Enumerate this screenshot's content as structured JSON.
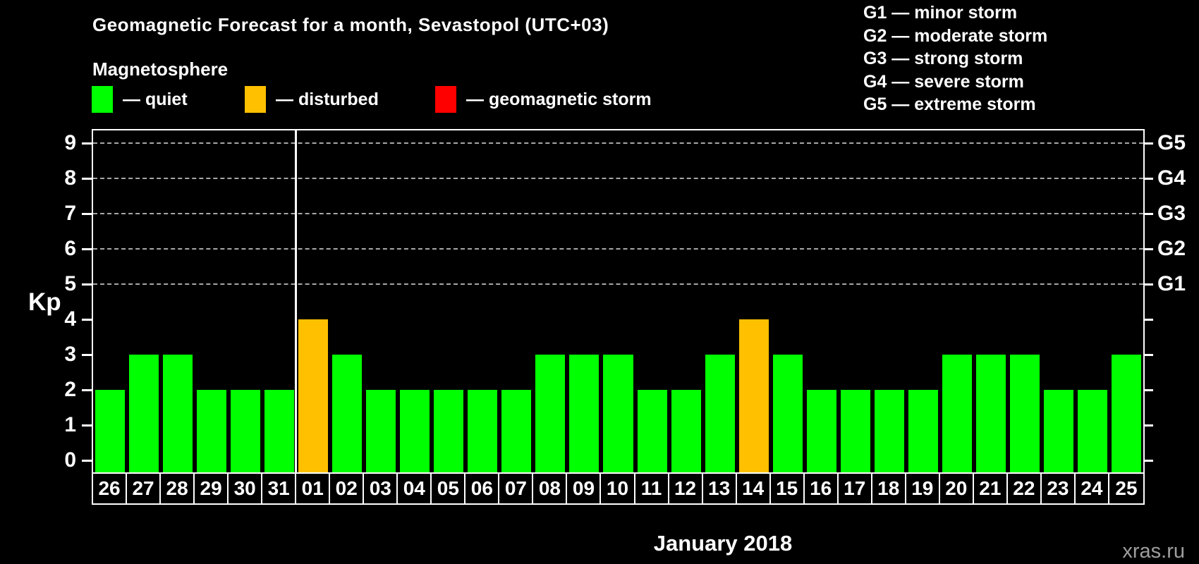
{
  "header": {
    "title": "Geomagnetic Forecast for a month, Sevastopol (UTC+03)"
  },
  "legend": {
    "title": "Magnetosphere",
    "items": [
      {
        "key": "quiet",
        "label": "— quiet",
        "color": "#00ff00"
      },
      {
        "key": "disturbed",
        "label": "— disturbed",
        "color": "#ffc000"
      },
      {
        "key": "storm",
        "label": "— geomagnetic storm",
        "color": "#ff0000"
      }
    ]
  },
  "g_legend": {
    "lines": [
      "G1 — minor storm",
      "G2 — moderate storm",
      "G3 — strong storm",
      "G4 — severe storm",
      "G5 — extreme storm"
    ]
  },
  "chart_data": {
    "type": "bar",
    "title": "Geomagnetic Forecast for a month, Sevastopol (UTC+03)",
    "xlabel": "January 2018",
    "ylabel": "Kp",
    "ylim": [
      0,
      9
    ],
    "yticks": [
      0,
      1,
      2,
      3,
      4,
      5,
      6,
      7,
      8,
      9
    ],
    "gridlines_at": [
      5,
      6,
      7,
      8,
      9
    ],
    "grid": "dashed-horizontal",
    "legend_position": "top",
    "right_axis": {
      "labels": [
        "G1",
        "G2",
        "G3",
        "G4",
        "G5"
      ],
      "kp_levels": [
        5,
        6,
        7,
        8,
        9
      ]
    },
    "categories": [
      "26",
      "27",
      "28",
      "29",
      "30",
      "31",
      "01",
      "02",
      "03",
      "04",
      "05",
      "06",
      "07",
      "08",
      "09",
      "10",
      "11",
      "12",
      "13",
      "14",
      "15",
      "16",
      "17",
      "18",
      "19",
      "20",
      "21",
      "22",
      "23",
      "24",
      "25"
    ],
    "values": [
      2,
      3,
      3,
      2,
      2,
      2,
      4,
      3,
      2,
      2,
      2,
      2,
      2,
      3,
      3,
      3,
      2,
      2,
      3,
      4,
      3,
      2,
      2,
      2,
      2,
      3,
      3,
      3,
      2,
      2,
      3
    ],
    "statuses": [
      "quiet",
      "quiet",
      "quiet",
      "quiet",
      "quiet",
      "quiet",
      "disturbed",
      "quiet",
      "quiet",
      "quiet",
      "quiet",
      "quiet",
      "quiet",
      "quiet",
      "quiet",
      "quiet",
      "quiet",
      "quiet",
      "quiet",
      "disturbed",
      "quiet",
      "quiet",
      "quiet",
      "quiet",
      "quiet",
      "quiet",
      "quiet",
      "quiet",
      "quiet",
      "quiet",
      "quiet"
    ],
    "month_divider_after_index": 5
  },
  "footer": {
    "xaxis_title": "January 2018",
    "watermark": "xras.ru"
  },
  "colors": {
    "background": "#000000",
    "axis": "#ffffff",
    "grid": "#a7a7a7",
    "quiet": "#00ff00",
    "disturbed": "#ffc000",
    "storm": "#ff0000",
    "watermark": "#9e9e9e"
  }
}
